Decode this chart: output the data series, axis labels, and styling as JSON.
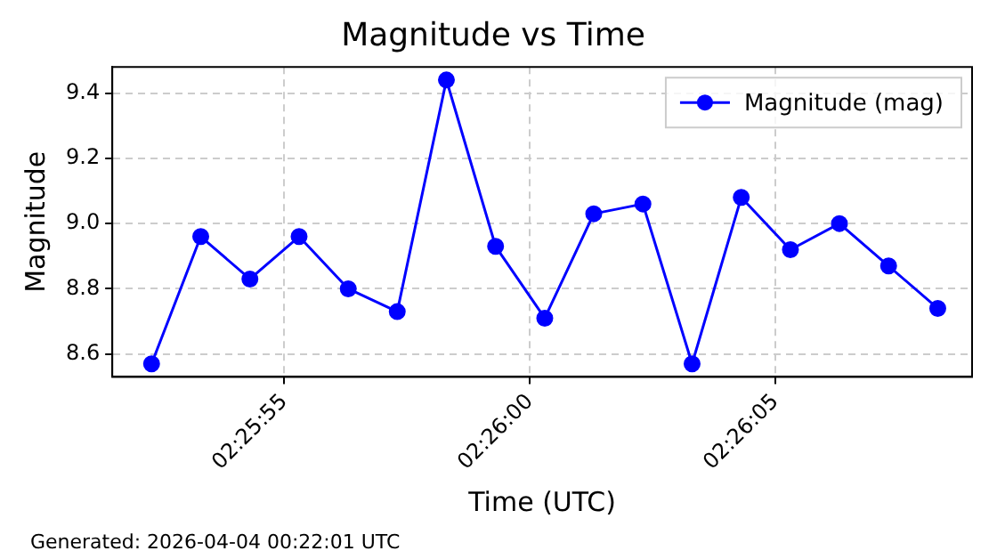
{
  "chart_data": {
    "type": "line",
    "title": "Magnitude vs Time",
    "xlabel": "Time (UTC)",
    "ylabel": "Magnitude",
    "annotations": [
      "Generated: 2026-04-04 00:22:01 UTC"
    ],
    "x": [
      2.431194,
      2.431472,
      2.43175,
      2.432028,
      2.432306,
      2.432583,
      2.432861,
      2.433139,
      2.433417,
      2.433694,
      2.433972,
      2.43425,
      2.434528,
      2.434806,
      2.435083,
      2.435361,
      2.435639
    ],
    "series": [
      {
        "name": "Magnitude (mag)",
        "color": "#0000ff",
        "values": [
          8.57,
          8.96,
          8.83,
          8.96,
          8.8,
          8.73,
          9.44,
          8.93,
          8.71,
          9.03,
          9.06,
          8.57,
          9.08,
          8.92,
          9.0,
          8.87,
          8.74
        ]
      }
    ],
    "xlim": [
      2.430972,
      2.435833
    ],
    "xticks": [
      {
        "value": 2.431944,
        "label": "02:25:55"
      },
      {
        "value": 2.433333,
        "label": "02:26:00"
      },
      {
        "value": 2.434722,
        "label": "02:26:05"
      }
    ],
    "ylim": [
      8.53,
      9.48
    ],
    "yticks": [
      {
        "value": 8.6,
        "label": "8.6"
      },
      {
        "value": 8.8,
        "label": "8.8"
      },
      {
        "value": 9.0,
        "label": "9.0"
      },
      {
        "value": 9.2,
        "label": "9.2"
      },
      {
        "value": 9.4,
        "label": "9.4"
      }
    ],
    "grid": true,
    "legend": "top right",
    "marker": "circle",
    "line_style": "solid"
  }
}
